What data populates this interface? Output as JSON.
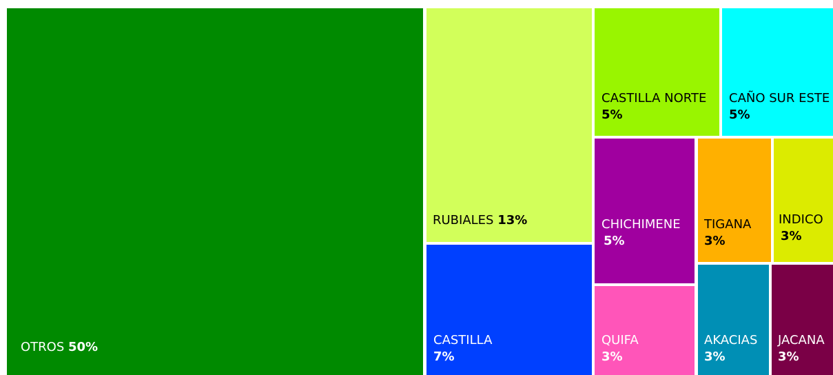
{
  "chart_data": {
    "type": "treemap",
    "items": [
      {
        "key": "otros",
        "name": "OTROS",
        "value": 50,
        "percent_label": "50%",
        "color": "#008A00",
        "text_color": "#ffffff"
      },
      {
        "key": "rubiales",
        "name": "RUBIALES",
        "value": 13,
        "percent_label": "13%",
        "color": "#D2FF5A",
        "text_color": "#000000"
      },
      {
        "key": "castilla",
        "name": "CASTILLA",
        "value": 7,
        "percent_label": "7%",
        "color": "#0040FF",
        "text_color": "#ffffff"
      },
      {
        "key": "castilla_norte",
        "name": "CASTILLA NORTE",
        "value": 5,
        "percent_label": "5%",
        "color": "#99F500",
        "text_color": "#000000"
      },
      {
        "key": "cano_sur_este",
        "name": "CAÑO SUR ESTE",
        "value": 5,
        "percent_label": "5%",
        "color": "#00FFFF",
        "text_color": "#000000"
      },
      {
        "key": "chichimene",
        "name": "CHICHIMENE",
        "value": 5,
        "percent_label": "5%",
        "color": "#A0009F",
        "text_color": "#ffffff"
      },
      {
        "key": "quifa",
        "name": "QUIFA",
        "value": 3,
        "percent_label": "3%",
        "color": "#FF55B9",
        "text_color": "#ffffff"
      },
      {
        "key": "tigana",
        "name": "TIGANA",
        "value": 3,
        "percent_label": "3%",
        "color": "#FFB000",
        "text_color": "#000000"
      },
      {
        "key": "indico",
        "name": "INDICO",
        "value": 3,
        "percent_label": "3%",
        "color": "#DCEB00",
        "text_color": "#000000"
      },
      {
        "key": "akacias",
        "name": "AKACIAS",
        "value": 3,
        "percent_label": "3%",
        "color": "#008FB5",
        "text_color": "#ffffff"
      },
      {
        "key": "jacana",
        "name": "JACANA",
        "value": 3,
        "percent_label": "3%",
        "color": "#7A0046",
        "text_color": "#ffffff"
      }
    ]
  }
}
